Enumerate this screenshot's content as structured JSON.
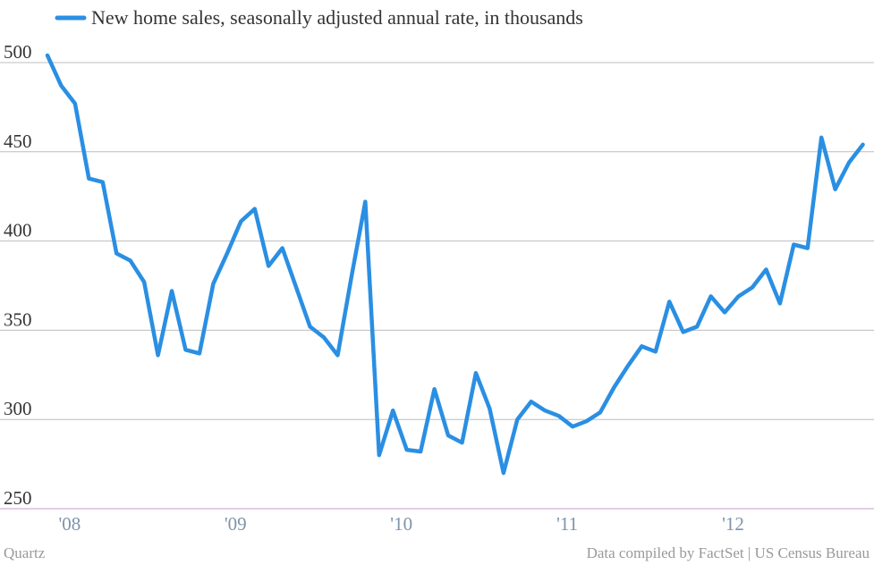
{
  "chart_data": {
    "type": "line",
    "categories": [
      null,
      null,
      "'08",
      null,
      null,
      null,
      null,
      null,
      null,
      null,
      null,
      null,
      null,
      null,
      "'09",
      null,
      null,
      null,
      null,
      null,
      null,
      null,
      null,
      null,
      null,
      null,
      "'10",
      null,
      null,
      null,
      null,
      null,
      null,
      null,
      null,
      null,
      null,
      null,
      "'11",
      null,
      null,
      null,
      null,
      null,
      null,
      null,
      null,
      null,
      null,
      null,
      "'12",
      null,
      null,
      null,
      null,
      null,
      null,
      null,
      null,
      null
    ],
    "series": [
      {
        "name": "New home sales, seasonally adjusted annual rate, in thousands",
        "color": "#2a8fe3",
        "values": [
          504,
          487,
          477,
          435,
          433,
          393,
          389,
          377,
          336,
          372,
          339,
          337,
          376,
          393,
          411,
          418,
          386,
          396,
          374,
          352,
          346,
          336,
          380,
          422,
          280,
          305,
          283,
          282,
          317,
          291,
          287,
          326,
          306,
          270,
          300,
          310,
          305,
          302,
          296,
          299,
          304,
          318,
          330,
          341,
          338,
          366,
          349,
          352,
          369,
          360,
          369,
          374,
          384,
          365,
          398,
          396,
          458,
          429,
          444,
          454
        ]
      }
    ],
    "ylim": [
      250,
      510
    ],
    "yticks": [
      250,
      300,
      350,
      400,
      450,
      500
    ],
    "grid": true,
    "source": "Data compiled by FactSet | US Census Bureau",
    "credit": "Quartz"
  }
}
